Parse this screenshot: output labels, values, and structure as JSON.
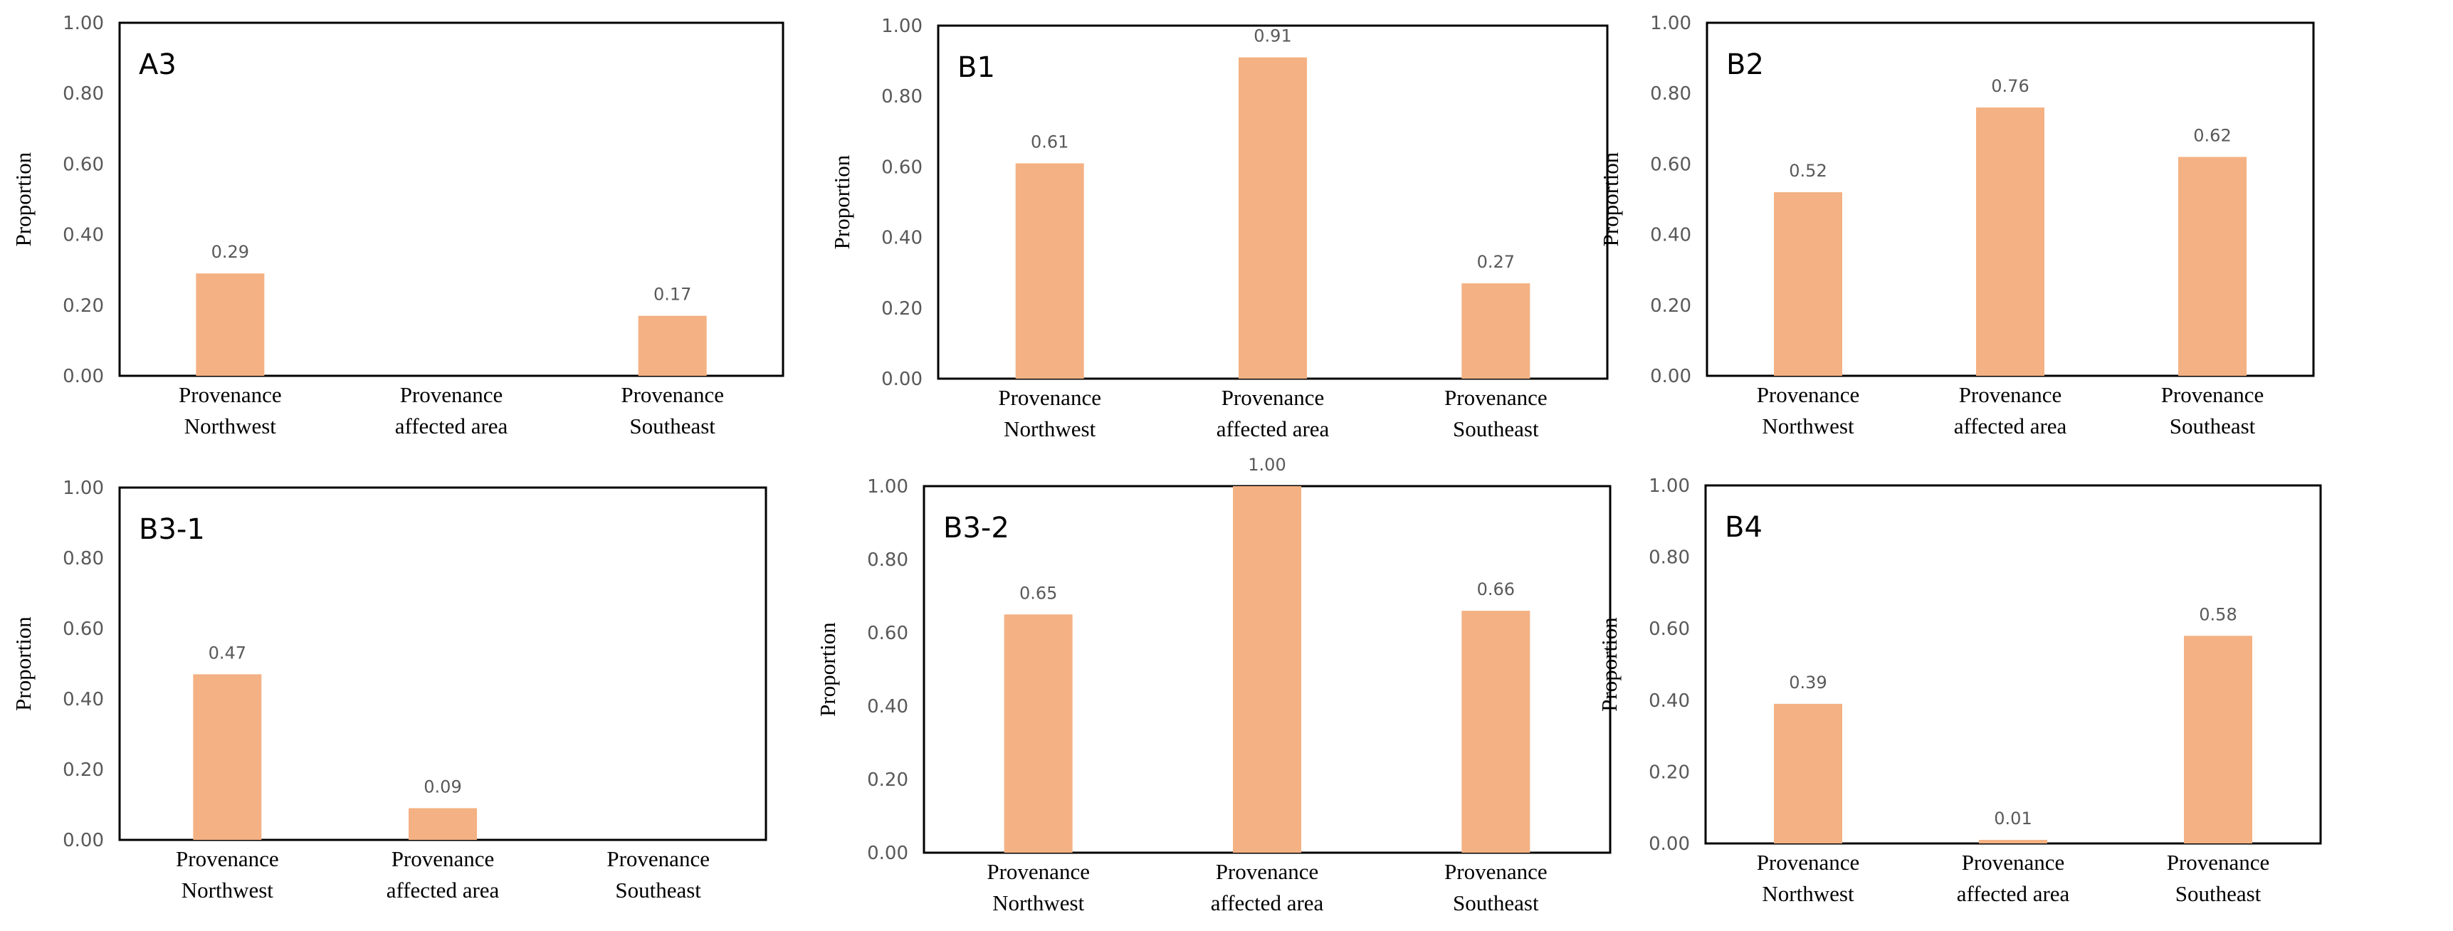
{
  "colors": {
    "bar": "#F4B183",
    "axis": "#000000",
    "text": "#595959"
  },
  "chart_data": [
    {
      "type": "bar",
      "panel": "A3",
      "categories": [
        [
          "Provenance",
          "Northwest"
        ],
        [
          "Provenance",
          "affected area"
        ],
        [
          "Provenance",
          "Southeast"
        ]
      ],
      "values": [
        0.29,
        null,
        0.17
      ],
      "data_labels": [
        "0.29",
        "",
        "0.17"
      ],
      "ylabel": "Proportion",
      "ylim": [
        0,
        1
      ],
      "yticks": [
        "0.00",
        "0.20",
        "0.40",
        "0.60",
        "0.80",
        "1.00"
      ]
    },
    {
      "type": "bar",
      "panel": "B1",
      "categories": [
        [
          "Provenance",
          "Northwest"
        ],
        [
          "Provenance",
          "affected area"
        ],
        [
          "Provenance",
          "Southeast"
        ]
      ],
      "values": [
        0.61,
        0.91,
        0.27
      ],
      "data_labels": [
        "0.61",
        "0.91",
        "0.27"
      ],
      "ylabel": "Proportion",
      "ylim": [
        0,
        1
      ],
      "yticks": [
        "0.00",
        "0.20",
        "0.40",
        "0.60",
        "0.80",
        "1.00"
      ]
    },
    {
      "type": "bar",
      "panel": "B2",
      "categories": [
        [
          "Provenance",
          "Northwest"
        ],
        [
          "Provenance",
          "affected area"
        ],
        [
          "Provenance",
          "Southeast"
        ]
      ],
      "values": [
        0.52,
        0.76,
        0.62
      ],
      "data_labels": [
        "0.52",
        "0.76",
        "0.62"
      ],
      "ylabel": "Proportion",
      "ylim": [
        0,
        1
      ],
      "yticks": [
        "0.00",
        "0.20",
        "0.40",
        "0.60",
        "0.80",
        "1.00"
      ]
    },
    {
      "type": "bar",
      "panel": "B3-1",
      "categories": [
        [
          "Provenance",
          "Northwest"
        ],
        [
          "Provenance",
          "affected area"
        ],
        [
          "Provenance",
          "Southeast"
        ]
      ],
      "values": [
        0.47,
        0.09,
        null
      ],
      "data_labels": [
        "0.47",
        "0.09",
        ""
      ],
      "ylabel": "Proportion",
      "ylim": [
        0,
        1
      ],
      "yticks": [
        "0.00",
        "0.20",
        "0.40",
        "0.60",
        "0.80",
        "1.00"
      ]
    },
    {
      "type": "bar",
      "panel": "B3-2",
      "categories": [
        [
          "Provenance",
          "Northwest"
        ],
        [
          "Provenance",
          "affected area"
        ],
        [
          "Provenance",
          "Southeast"
        ]
      ],
      "values": [
        0.65,
        1.0,
        0.66
      ],
      "data_labels": [
        "0.65",
        "1.00",
        "0.66"
      ],
      "ylabel": "Proportion",
      "ylim": [
        0,
        1
      ],
      "yticks": [
        "0.00",
        "0.20",
        "0.40",
        "0.60",
        "0.80",
        "1.00"
      ]
    },
    {
      "type": "bar",
      "panel": "B4",
      "categories": [
        [
          "Provenance",
          "Northwest"
        ],
        [
          "Provenance",
          "affected area"
        ],
        [
          "Provenance",
          "Southeast"
        ]
      ],
      "values": [
        0.39,
        0.01,
        0.58
      ],
      "data_labels": [
        "0.39",
        "0.01",
        "0.58"
      ],
      "ylabel": "Proportion",
      "ylim": [
        0,
        1
      ],
      "yticks": [
        "0.00",
        "0.20",
        "0.40",
        "0.60",
        "0.80",
        "1.00"
      ]
    }
  ]
}
